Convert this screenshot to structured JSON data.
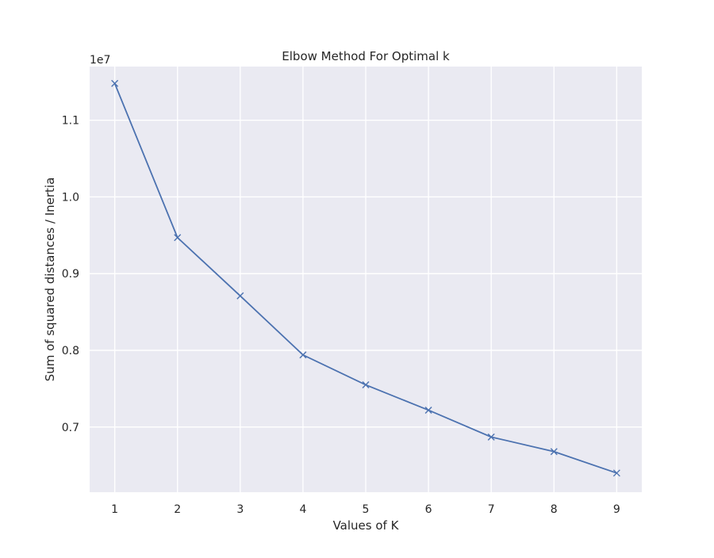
{
  "chart_data": {
    "type": "line",
    "title": "Elbow Method For Optimal k",
    "xlabel": "Values of K",
    "ylabel": "Sum of squared distances / Inertia",
    "y_scale_label": "1e7",
    "x": [
      1,
      2,
      3,
      4,
      5,
      6,
      7,
      8,
      9
    ],
    "series": [
      {
        "values": [
          11480000,
          9470000,
          8710000,
          7940000,
          7550000,
          7220000,
          6870000,
          6680000,
          6400000
        ],
        "color": "#4c72b0",
        "marker": "x"
      }
    ],
    "xlim": [
      0.6,
      9.4
    ],
    "ylim": [
      6150000,
      11700000
    ],
    "xticks": [
      1,
      2,
      3,
      4,
      5,
      6,
      7,
      8,
      9
    ],
    "xtick_labels": [
      "1",
      "2",
      "3",
      "4",
      "5",
      "6",
      "7",
      "8",
      "9"
    ],
    "yticks": [
      7000000,
      8000000,
      9000000,
      10000000,
      11000000
    ],
    "ytick_labels": [
      "0.7",
      "0.8",
      "0.9",
      "1.0",
      "1.1"
    ],
    "grid": true,
    "background": "#eaeaf2"
  }
}
